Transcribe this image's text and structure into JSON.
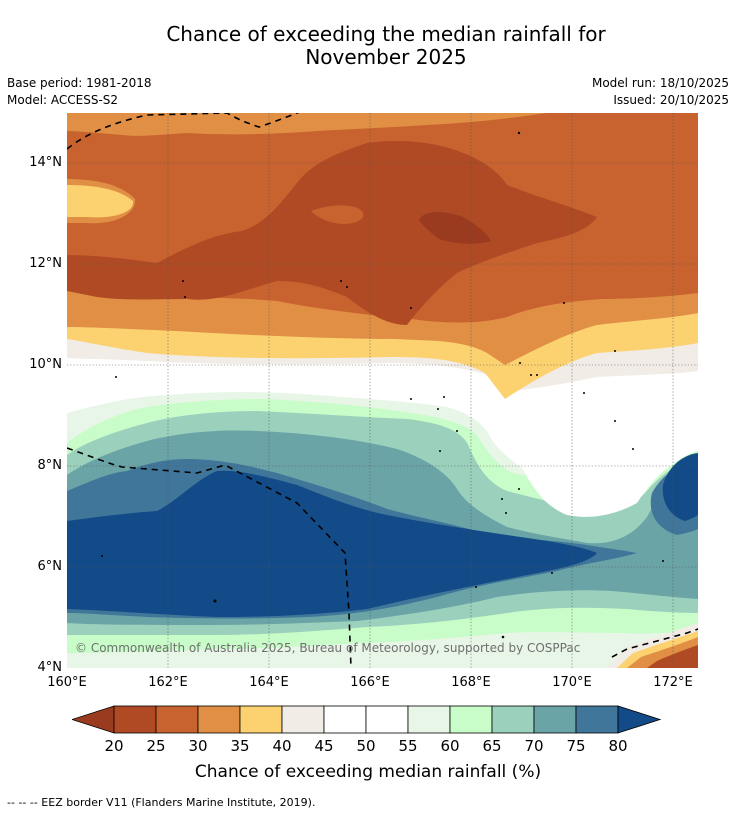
{
  "title_line1": "Chance of exceeding the median rainfall for",
  "title_line2": "November 2025",
  "meta": {
    "base_period": "Base period: 1981-2018",
    "model": "Model: ACCESS-S2",
    "model_run": "Model run: 18/10/2025",
    "issued": "Issued: 20/10/2025"
  },
  "map": {
    "lat_labels": [
      "14°N",
      "12°N",
      "10°N",
      "8°N",
      "6°N",
      "4°N"
    ],
    "lon_labels": [
      "160°E",
      "162°E",
      "164°E",
      "166°E",
      "168°E",
      "170°E",
      "172°E"
    ],
    "copyright": "© Commonwealth of Australia 2025, Bureau of Meteorology, supported by COSPPac"
  },
  "colorbar": {
    "ticks": [
      "20",
      "25",
      "30",
      "35",
      "40",
      "45",
      "50",
      "55",
      "60",
      "65",
      "70",
      "75",
      "80"
    ],
    "colors": [
      "#9a3a1f",
      "#b04a24",
      "#c8632f",
      "#e08f45",
      "#fcd170",
      "#f1ece6",
      "#ffffff",
      "#ffffff",
      "#e8f6e7",
      "#c8fcc8",
      "#9bd0bc",
      "#6aa4a6",
      "#3f7699",
      "#124b87"
    ],
    "title": "Chance of exceeding median rainfall (%)"
  },
  "footer": "--  --  -- EEZ border V11 (Flanders Marine Institute, 2019)."
}
